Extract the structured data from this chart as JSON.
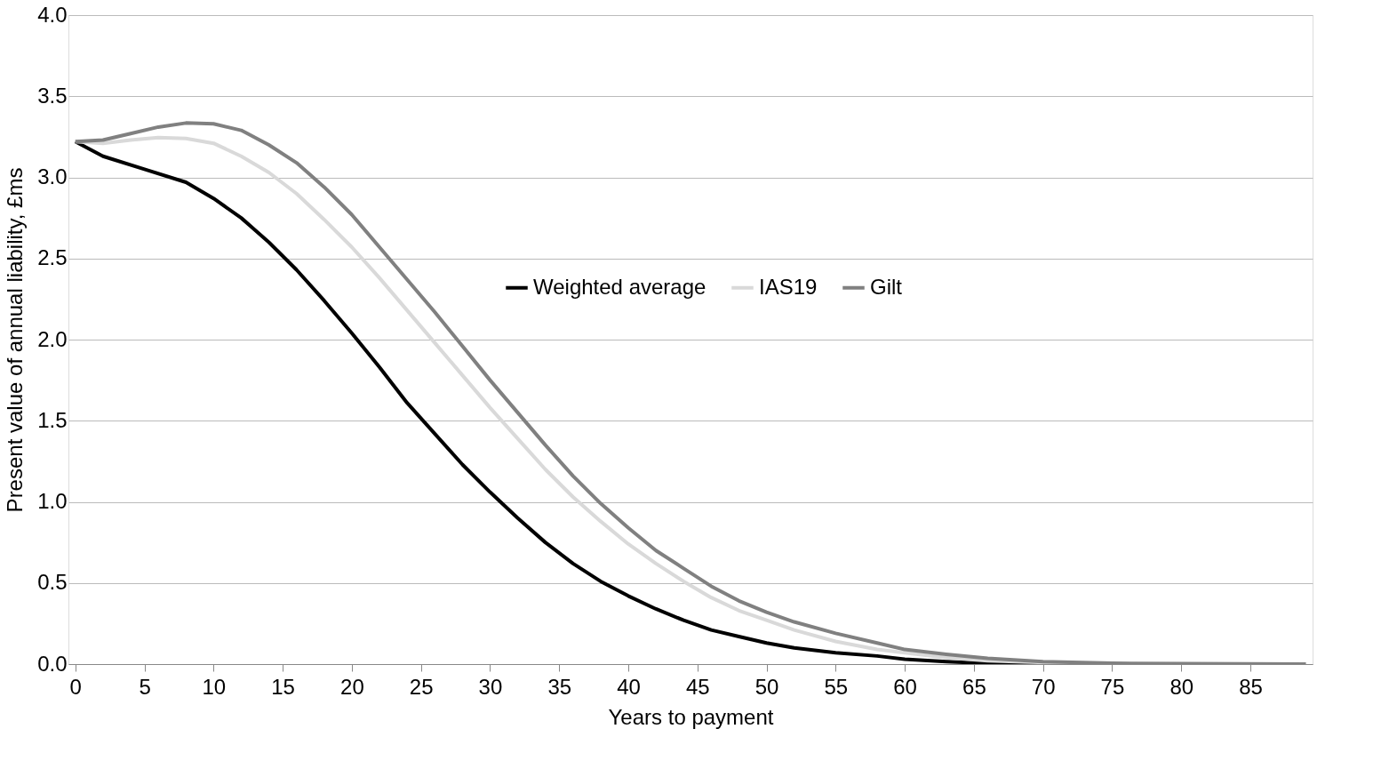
{
  "chart_data": {
    "type": "line",
    "xlabel": "Years to payment",
    "ylabel": "Present value of annual liability, £ms",
    "xlim": [
      -0.5,
      89.5
    ],
    "xticks": [
      0,
      5,
      10,
      15,
      20,
      25,
      30,
      35,
      40,
      45,
      50,
      55,
      60,
      65,
      70,
      75,
      80,
      85
    ],
    "ylim": [
      0,
      4
    ],
    "yticks": [
      {
        "value": 0,
        "label": "0.0"
      },
      {
        "value": 0.5,
        "label": "0.5"
      },
      {
        "value": 1,
        "label": "1.0"
      },
      {
        "value": 1.5,
        "label": "1.5"
      },
      {
        "value": 2,
        "label": "2.0"
      },
      {
        "value": 2.5,
        "label": "2.5"
      },
      {
        "value": 3,
        "label": "3.0"
      },
      {
        "value": 3.5,
        "label": "3.5"
      },
      {
        "value": 4,
        "label": "4.0"
      }
    ],
    "grid": "y",
    "legend": "top",
    "marker": "none",
    "line_style": "solid",
    "series": [
      {
        "name": "Weighted average",
        "color": "#000000",
        "x": [
          0,
          2,
          5,
          8,
          10,
          12,
          14,
          16,
          18,
          20,
          22,
          24,
          26,
          28,
          30,
          32,
          34,
          36,
          38,
          40,
          42,
          44,
          46,
          48,
          50,
          52,
          55,
          58,
          60,
          63,
          66,
          70,
          89
        ],
        "values": [
          3.22,
          3.13,
          3.05,
          2.97,
          2.87,
          2.75,
          2.6,
          2.43,
          2.24,
          2.04,
          1.83,
          1.61,
          1.42,
          1.23,
          1.06,
          0.9,
          0.75,
          0.62,
          0.51,
          0.42,
          0.34,
          0.27,
          0.21,
          0.17,
          0.13,
          0.1,
          0.07,
          0.05,
          0.03,
          0.015,
          0.005,
          0,
          0
        ]
      },
      {
        "name": "IAS19",
        "color": "#d9d9d9",
        "x": [
          0,
          2,
          4,
          6,
          8,
          10,
          12,
          14,
          16,
          18,
          20,
          22,
          24,
          26,
          28,
          30,
          32,
          34,
          36,
          38,
          40,
          42,
          44,
          46,
          48,
          50,
          52,
          55,
          58,
          60,
          63,
          66,
          70,
          75,
          89
        ],
        "values": [
          3.22,
          3.21,
          3.23,
          3.245,
          3.24,
          3.21,
          3.13,
          3.03,
          2.9,
          2.74,
          2.57,
          2.38,
          2.18,
          1.98,
          1.78,
          1.58,
          1.39,
          1.2,
          1.03,
          0.88,
          0.74,
          0.62,
          0.51,
          0.41,
          0.33,
          0.27,
          0.21,
          0.14,
          0.09,
          0.07,
          0.04,
          0.02,
          0.01,
          0,
          0
        ]
      },
      {
        "name": "Gilt",
        "color": "#808080",
        "x": [
          0,
          2,
          4,
          6,
          8,
          10,
          12,
          14,
          16,
          18,
          20,
          22,
          24,
          26,
          28,
          30,
          32,
          34,
          36,
          38,
          40,
          42,
          44,
          46,
          48,
          50,
          52,
          55,
          58,
          60,
          63,
          66,
          70,
          75,
          89
        ],
        "values": [
          3.22,
          3.23,
          3.27,
          3.31,
          3.335,
          3.33,
          3.29,
          3.2,
          3.09,
          2.94,
          2.77,
          2.57,
          2.37,
          2.17,
          1.96,
          1.75,
          1.55,
          1.35,
          1.16,
          0.99,
          0.84,
          0.7,
          0.59,
          0.48,
          0.39,
          0.32,
          0.26,
          0.19,
          0.13,
          0.09,
          0.06,
          0.035,
          0.015,
          0.005,
          0
        ]
      }
    ]
  }
}
